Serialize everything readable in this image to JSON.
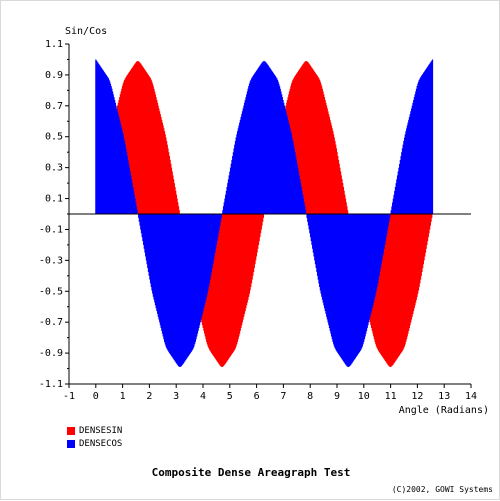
{
  "chart_data": {
    "type": "area",
    "title": "Composite Dense Areagraph Test",
    "credit": "(C)2002, GOWI Systems",
    "ylabel": "Sin/Cos",
    "xlabel": "Angle (Radians)",
    "xlim": [
      -1,
      14
    ],
    "ylim": [
      -1.1,
      1.1
    ],
    "x_ticks": [
      "-1",
      "0",
      "1",
      "2",
      "3",
      "4",
      "5",
      "6",
      "7",
      "8",
      "9",
      "10",
      "11",
      "12",
      "13",
      "14"
    ],
    "y_ticks": [
      "1.1",
      "0.9",
      "0.7",
      "0.5",
      "0.3",
      "0.1",
      "-0.1",
      "-0.3",
      "-0.5",
      "-0.7",
      "-0.9",
      "-1.1"
    ],
    "x_range_of_series": [
      0,
      12.566
    ],
    "series": [
      {
        "name": "DENSESIN",
        "color": "#ff0000",
        "x": [
          0,
          0.5236,
          1.0472,
          1.5708,
          2.0944,
          2.618,
          3.1416,
          3.6652,
          4.1888,
          4.7124,
          5.236,
          5.7596,
          6.2832,
          6.8068,
          7.3304,
          7.854,
          8.3776,
          8.9012,
          9.4248,
          9.9484,
          10.472,
          10.9956,
          11.5192,
          12.0428,
          12.5664
        ],
        "values": [
          0,
          0.5,
          0.866,
          1,
          0.866,
          0.5,
          0,
          -0.5,
          -0.866,
          -1,
          -0.866,
          -0.5,
          0,
          0.5,
          0.866,
          1,
          0.866,
          0.5,
          0,
          -0.5,
          -0.866,
          -1,
          -0.866,
          -0.5,
          0
        ]
      },
      {
        "name": "DENSECOS",
        "color": "#0000ff",
        "x": [
          0,
          0.5236,
          1.0472,
          1.5708,
          2.0944,
          2.618,
          3.1416,
          3.6652,
          4.1888,
          4.7124,
          5.236,
          5.7596,
          6.2832,
          6.8068,
          7.3304,
          7.854,
          8.3776,
          8.9012,
          9.4248,
          9.9484,
          10.472,
          10.9956,
          11.5192,
          12.0428,
          12.5664
        ],
        "values": [
          1,
          0.866,
          0.5,
          0,
          -0.5,
          -0.866,
          -1,
          -0.866,
          -0.5,
          0,
          0.5,
          0.866,
          1,
          0.866,
          0.5,
          0,
          -0.5,
          -0.866,
          -1,
          -0.866,
          -0.5,
          0,
          0.5,
          0.866,
          1
        ]
      }
    ]
  }
}
